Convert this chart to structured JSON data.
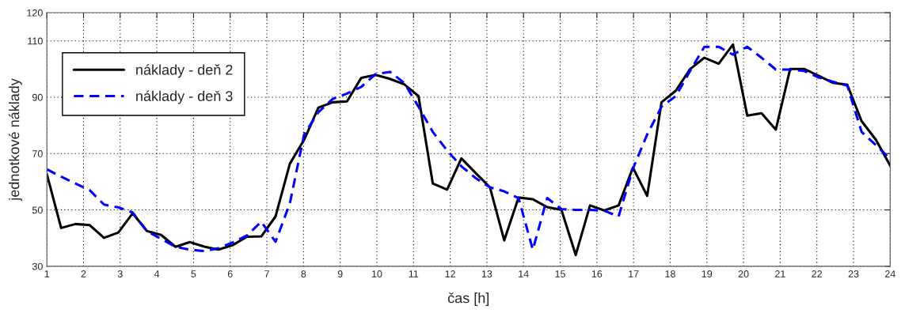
{
  "chart_data": {
    "type": "line",
    "xlabel": "čas [h]",
    "ylabel": "jednotkové náklady",
    "x": [
      1,
      1.3898,
      1.7797,
      2.1695,
      2.5593,
      2.9492,
      3.339,
      3.7288,
      4.1186,
      4.5085,
      4.8983,
      5.2881,
      5.678,
      6.0678,
      6.4576,
      6.8475,
      7.2373,
      7.6271,
      8.0169,
      8.4068,
      8.7966,
      9.1864,
      9.5763,
      9.9661,
      10.3559,
      10.7458,
      11.1356,
      11.5254,
      11.9153,
      12.3051,
      12.6949,
      13.0847,
      13.4746,
      13.8644,
      14.2542,
      14.6441,
      15.0339,
      15.4237,
      15.8136,
      16.2034,
      16.5932,
      16.9831,
      17.3729,
      17.7627,
      18.1525,
      18.5424,
      18.9322,
      19.322,
      19.7119,
      20.1017,
      20.4915,
      20.8814,
      21.2712,
      21.661,
      22.0508,
      22.4407,
      22.8305,
      23.2203,
      23.6102,
      24
    ],
    "series": [
      {
        "name": "náklady - deň 2",
        "color": "#000000",
        "line_style": "solid",
        "values": [
          62.7,
          43.6,
          45.0,
          44.6,
          40.1,
          42.0,
          48.8,
          42.5,
          41.1,
          36.9,
          38.6,
          37.0,
          35.9,
          37.5,
          40.5,
          40.6,
          47.7,
          66.4,
          74.9,
          86.3,
          88.2,
          88.5,
          96.9,
          97.9,
          96.5,
          94.6,
          90.4,
          59.4,
          57.2,
          68.3,
          63.1,
          58.0,
          39.2,
          54.4,
          53.8,
          51.0,
          50.0,
          34.0,
          51.6,
          49.8,
          51.6,
          65.0,
          55.0,
          88.2,
          92.3,
          100.0,
          104.0,
          101.9,
          108.7,
          83.5,
          84.3,
          78.5,
          100.0,
          100.0,
          97.6,
          95.1,
          94.4,
          81.5,
          74.9,
          65.7
        ]
      },
      {
        "name": "náklady - deň 3",
        "color": "#0000ff",
        "line_style": "dashed",
        "values": [
          64.4,
          61.8,
          59.4,
          57.0,
          51.9,
          50.9,
          49.1,
          42.5,
          39.7,
          36.9,
          35.9,
          35.4,
          36.4,
          38.5,
          40.9,
          45.8,
          38.7,
          52.3,
          76.8,
          84.7,
          89.4,
          91.3,
          93.7,
          98.2,
          99.0,
          95.1,
          86.6,
          77.7,
          71.1,
          65.5,
          61.3,
          58.0,
          56.6,
          54.2,
          35.9,
          54.2,
          50.3,
          50.0,
          50.0,
          49.7,
          47.7,
          64.6,
          76.8,
          86.6,
          90.4,
          99.3,
          107.9,
          107.9,
          105.1,
          107.9,
          104.0,
          99.8,
          99.8,
          99.3,
          97.0,
          95.5,
          94.1,
          77.7,
          73.0,
          68.1
        ]
      }
    ],
    "xlim": [
      1,
      24
    ],
    "xticks": [
      1,
      2,
      3,
      4,
      5,
      6,
      7,
      8,
      9,
      10,
      11,
      12,
      13,
      14,
      15,
      16,
      17,
      18,
      19,
      20,
      21,
      22,
      23,
      24
    ],
    "ylim": [
      30,
      120
    ],
    "yticks": [
      30,
      50,
      70,
      90,
      110,
      120
    ],
    "grid": true,
    "legend": "top left",
    "marker": "none"
  }
}
